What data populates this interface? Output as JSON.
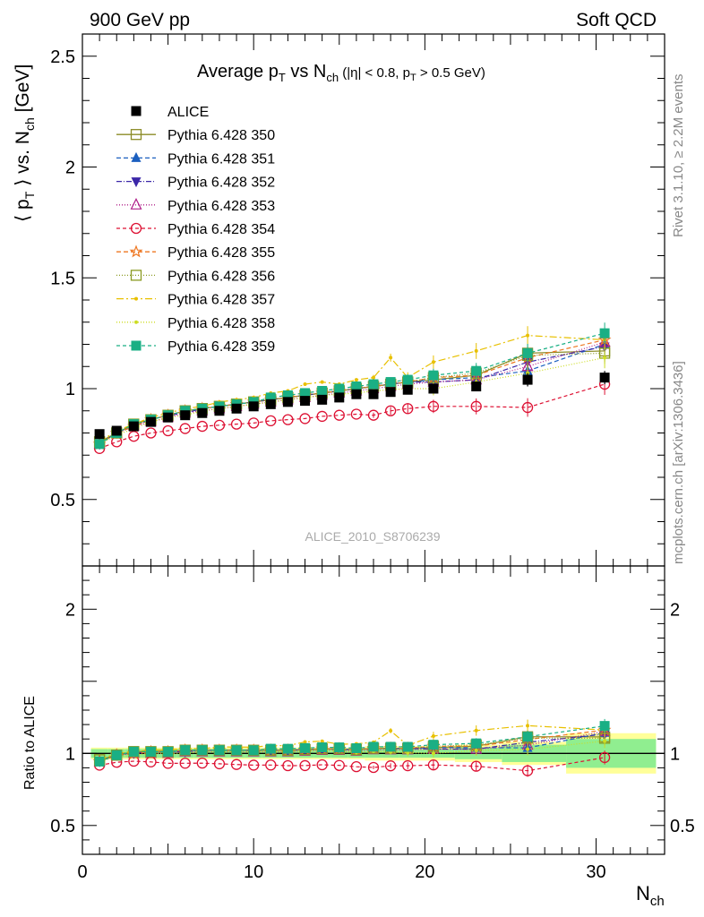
{
  "header": {
    "left": "900 GeV pp",
    "right": "Soft QCD"
  },
  "side_labels": {
    "rivet": "Rivet 3.1.10, ≥ 2.2M events",
    "mcplots": "mcplots.cern.ch [arXiv:1306.3436]"
  },
  "title": {
    "prefix": "Average p",
    "sub1": "T",
    "mid": " vs N",
    "sub2": "ch",
    "cuts": " (|η| < 0.8, p",
    "sub3": "T",
    "cuts_end": " > 0.5 GeV)"
  },
  "ylabel_top": {
    "a": "⟨ p",
    "sub": "T",
    "b": " ⟩ vs. N",
    "sub2": "ch",
    "c": " [GeV]"
  },
  "ylabel_bottom": "Ratio to ALICE",
  "xlabel": {
    "main": "N",
    "sub": "ch"
  },
  "watermark": "ALICE_2010_S8706239",
  "colors": {
    "data": "#000000",
    "band_inner": "#90ee90",
    "band_outer": "#ffff99"
  },
  "chart_data": {
    "type": "line",
    "x": [
      1,
      2,
      3,
      4,
      5,
      6,
      7,
      8,
      9,
      10,
      11,
      12,
      13,
      14,
      15,
      16,
      17,
      18,
      19,
      20.5,
      23,
      26,
      30.5
    ],
    "xlim": [
      0,
      34
    ],
    "xticks": [
      0,
      10,
      20,
      30
    ],
    "top": {
      "ylim": [
        0.2,
        2.6
      ],
      "yticks": [
        0.5,
        1,
        1.5,
        2,
        2.5
      ]
    },
    "ratio": {
      "ylim": [
        0.3,
        2.3
      ],
      "yticks": [
        0.5,
        1,
        2
      ]
    },
    "data": {
      "name": "ALICE",
      "values": [
        0.795,
        0.81,
        0.83,
        0.85,
        0.87,
        0.88,
        0.89,
        0.9,
        0.91,
        0.92,
        0.93,
        0.94,
        0.945,
        0.95,
        0.96,
        0.975,
        0.975,
        0.985,
        0.995,
        1.0,
        1.01,
        1.04,
        1.05
      ],
      "errors": [
        0.01,
        0.01,
        0.01,
        0.01,
        0.01,
        0.01,
        0.01,
        0.01,
        0.01,
        0.01,
        0.01,
        0.01,
        0.01,
        0.01,
        0.01,
        0.01,
        0.012,
        0.012,
        0.015,
        0.015,
        0.02,
        0.03,
        0.03
      ],
      "band_inner": [
        0.03,
        0.03,
        0.03,
        0.03,
        0.03,
        0.03,
        0.03,
        0.03,
        0.03,
        0.03,
        0.03,
        0.03,
        0.03,
        0.03,
        0.03,
        0.03,
        0.03,
        0.03,
        0.03,
        0.03,
        0.04,
        0.06,
        0.1
      ],
      "band_outer": [
        0.04,
        0.04,
        0.04,
        0.04,
        0.04,
        0.04,
        0.04,
        0.04,
        0.04,
        0.04,
        0.04,
        0.04,
        0.04,
        0.04,
        0.04,
        0.04,
        0.05,
        0.05,
        0.05,
        0.05,
        0.06,
        0.08,
        0.14
      ]
    },
    "series": [
      {
        "name": "Pythia 6.428 350",
        "color": "#8b8b26",
        "marker": "open-square",
        "dash": "",
        "values": [
          0.76,
          0.8,
          0.84,
          0.86,
          0.88,
          0.9,
          0.91,
          0.92,
          0.93,
          0.94,
          0.95,
          0.96,
          0.97,
          0.98,
          0.99,
          1.0,
          1.01,
          1.02,
          1.03,
          1.04,
          1.06,
          1.16,
          1.17
        ]
      },
      {
        "name": "Pythia 6.428 351",
        "color": "#1b5fbf",
        "marker": "filled-triangle-up",
        "dash": "5,3",
        "values": [
          0.75,
          0.8,
          0.83,
          0.86,
          0.88,
          0.9,
          0.91,
          0.92,
          0.93,
          0.94,
          0.95,
          0.96,
          0.97,
          0.98,
          0.99,
          1.0,
          1.01,
          1.02,
          1.03,
          1.04,
          1.05,
          1.08,
          1.2
        ]
      },
      {
        "name": "Pythia 6.428 352",
        "color": "#3b27a8",
        "marker": "filled-triangle-down",
        "dash": "6,2,1,2",
        "values": [
          0.75,
          0.8,
          0.83,
          0.86,
          0.88,
          0.89,
          0.91,
          0.92,
          0.93,
          0.94,
          0.95,
          0.96,
          0.97,
          0.98,
          0.99,
          1.0,
          1.01,
          1.02,
          1.03,
          1.03,
          1.04,
          1.12,
          1.19
        ]
      },
      {
        "name": "Pythia 6.428 353",
        "color": "#b0208a",
        "marker": "open-triangle-up",
        "dash": "1,2",
        "values": [
          0.75,
          0.8,
          0.83,
          0.85,
          0.87,
          0.89,
          0.9,
          0.91,
          0.92,
          0.93,
          0.94,
          0.95,
          0.96,
          0.97,
          0.98,
          0.99,
          1.0,
          1.01,
          1.02,
          1.03,
          1.04,
          1.1,
          1.21
        ]
      },
      {
        "name": "Pythia 6.428 354",
        "color": "#dd1133",
        "marker": "open-circle",
        "dash": "4,3",
        "values": [
          0.73,
          0.76,
          0.785,
          0.8,
          0.81,
          0.82,
          0.83,
          0.835,
          0.84,
          0.845,
          0.855,
          0.86,
          0.865,
          0.875,
          0.88,
          0.885,
          0.88,
          0.9,
          0.91,
          0.92,
          0.92,
          0.915,
          1.02
        ]
      },
      {
        "name": "Pythia 6.428 355",
        "color": "#ee7722",
        "marker": "open-star",
        "dash": "5,3",
        "values": [
          0.75,
          0.8,
          0.83,
          0.86,
          0.88,
          0.9,
          0.91,
          0.92,
          0.93,
          0.94,
          0.95,
          0.96,
          0.97,
          0.98,
          0.99,
          1.0,
          1.01,
          1.02,
          1.03,
          1.05,
          1.06,
          1.14,
          1.22
        ]
      },
      {
        "name": "Pythia 6.428 356",
        "color": "#8a9a22",
        "marker": "open-square",
        "dash": "1,2",
        "values": [
          0.76,
          0.8,
          0.84,
          0.86,
          0.88,
          0.9,
          0.91,
          0.92,
          0.93,
          0.94,
          0.95,
          0.96,
          0.97,
          0.98,
          0.99,
          1.0,
          1.01,
          1.02,
          1.03,
          1.05,
          1.07,
          1.15,
          1.16
        ]
      },
      {
        "name": "Pythia 6.428 357",
        "color": "#e8c000",
        "marker": "dot",
        "dash": "8,3,2,3",
        "values": [
          0.76,
          0.81,
          0.84,
          0.87,
          0.89,
          0.91,
          0.92,
          0.94,
          0.95,
          0.96,
          0.98,
          0.99,
          1.02,
          1.03,
          1.02,
          1.04,
          1.05,
          1.14,
          1.05,
          1.12,
          1.17,
          1.24,
          1.22
        ]
      },
      {
        "name": "Pythia 6.428 358",
        "color": "#ccdd22",
        "marker": "dot",
        "dash": "1,2",
        "values": [
          0.75,
          0.79,
          0.82,
          0.85,
          0.87,
          0.88,
          0.9,
          0.91,
          0.92,
          0.93,
          0.94,
          0.95,
          0.96,
          0.97,
          0.975,
          0.98,
          0.99,
          0.995,
          1.0,
          1.0,
          1.03,
          1.07,
          1.14
        ]
      },
      {
        "name": "Pythia 6.428 359",
        "color": "#1aaf84",
        "marker": "filled-square",
        "dash": "4,3",
        "values": [
          0.75,
          0.8,
          0.84,
          0.86,
          0.88,
          0.9,
          0.91,
          0.92,
          0.93,
          0.94,
          0.96,
          0.97,
          0.98,
          0.99,
          1.0,
          1.01,
          1.02,
          1.03,
          1.04,
          1.06,
          1.08,
          1.16,
          1.25
        ]
      }
    ]
  }
}
